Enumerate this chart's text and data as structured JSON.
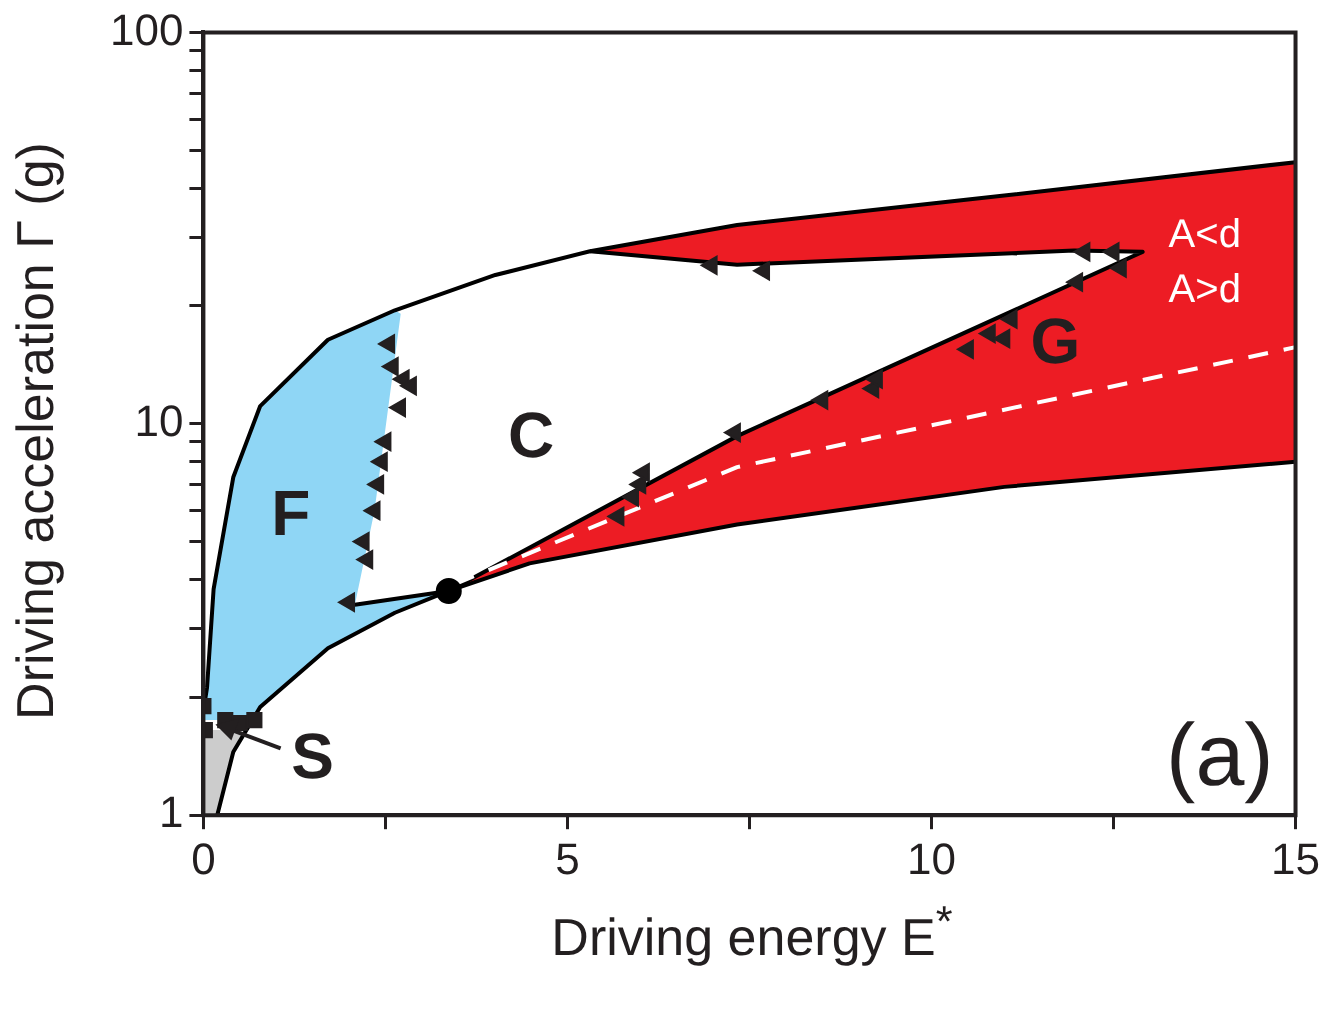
{
  "chart_data": {
    "type": "scatter",
    "xlabel": "Driving energy E$^{*}$",
    "ylabel": "Driving acceleration Γ (g)",
    "log": "y",
    "xlim": [
      0,
      15
    ],
    "ylim": [
      1,
      100
    ],
    "xticks": [
      0,
      {
        "value": 2.5,
        "label": null
      },
      5,
      {
        "value": 7.5,
        "label": null
      },
      10,
      {
        "value": 12.5,
        "label": null
      },
      15
    ],
    "yticks": [
      1,
      {
        "value": 2,
        "label": null
      },
      {
        "value": 3,
        "label": null
      },
      {
        "value": 4,
        "label": null
      },
      {
        "value": 5,
        "label": null
      },
      {
        "value": 6,
        "label": null
      },
      {
        "value": 7,
        "label": null
      },
      {
        "value": 8,
        "label": null
      },
      {
        "value": 9,
        "label": null
      },
      10,
      {
        "value": 20,
        "label": null
      },
      {
        "value": 30,
        "label": null
      },
      {
        "value": 40,
        "label": null
      },
      {
        "value": 50,
        "label": null
      },
      {
        "value": 60,
        "label": null
      },
      {
        "value": 70,
        "label": null
      },
      {
        "value": 80,
        "label": null
      },
      {
        "value": 90,
        "label": null
      },
      100
    ],
    "grid": false,
    "legend": false,
    "series": [
      {
        "type": "area",
        "color": "#8fd6f5",
        "x": [
          0,
          0.05,
          0.14,
          0.41,
          0.78,
          1.71,
          2.63,
          2.71,
          2.35,
          2.08,
          3.37,
          2.63,
          1.71,
          0.78,
          0.6,
          0
        ],
        "values": [
          1.85,
          2.12,
          3.78,
          7.3,
          11.1,
          16.4,
          19.5,
          19.1,
          6.0,
          3.45,
          3.74,
          3.29,
          2.67,
          1.89,
          1.75,
          1.75
        ]
      },
      {
        "type": "area",
        "color": "#ed1c24",
        "x": [
          5.31,
          7.33,
          11.0,
          15,
          15,
          11.0,
          7.33,
          4.48,
          3.37,
          7.33,
          12.9,
          11.96,
          7.33,
          5.31
        ],
        "values": [
          27.6,
          32.2,
          38.3,
          46.6,
          8.0,
          6.9,
          5.53,
          4.4,
          3.74,
          9.3,
          27.5,
          27.7,
          25.5,
          27.6
        ]
      },
      {
        "type": "area",
        "color": "#cccccc",
        "x": [
          0,
          0.19,
          0.41,
          0.55,
          0
        ],
        "values": [
          1,
          1,
          1.45,
          1.65,
          1.65
        ]
      },
      {
        "type": "line",
        "color": "#000000",
        "x": [
          0,
          0.05,
          0.14,
          0.41,
          0.78,
          1.71,
          2.63,
          4.01,
          5.31,
          7.33,
          11.0,
          15
        ],
        "values": [
          1.85,
          2.12,
          3.78,
          7.3,
          11.1,
          16.4,
          19.5,
          24,
          27.6,
          32.2,
          38.3,
          46.6
        ]
      },
      {
        "type": "line",
        "color": "#000000",
        "x": [
          0.19,
          0.41,
          0.78,
          1.71,
          2.63,
          3.37,
          4.48,
          7.33,
          11.0,
          15
        ],
        "values": [
          1,
          1.45,
          1.89,
          2.67,
          3.29,
          3.74,
          4.4,
          5.53,
          6.9,
          8.0
        ]
      },
      {
        "type": "line",
        "color": "#000000",
        "x": [
          2.08,
          3.37,
          7.33,
          12.9,
          11.96,
          7.33,
          5.31
        ],
        "values": [
          3.45,
          3.74,
          9.3,
          27.5,
          27.7,
          25.5,
          27.6
        ]
      },
      {
        "type": "line",
        "color": "#ffffff",
        "line_style": "dashed",
        "x": [
          3.46,
          7.33,
          15
        ],
        "values": [
          3.9,
          7.75,
          15.7
        ]
      },
      {
        "color": "#231f20",
        "marker": "triangle",
        "x": [
          2.55,
          2.6,
          2.75,
          2.85,
          2.7,
          2.5,
          2.45,
          2.4,
          2.35,
          2.2,
          2.25,
          2.0,
          5.7,
          5.9,
          6.0,
          6.05,
          7.3,
          8.5,
          9.2,
          9.25,
          10.5,
          10.8,
          11.0,
          11.1,
          12.0,
          12.6,
          12.5,
          12.1,
          6.98,
          7.7
        ],
        "values": [
          16,
          14,
          13,
          12.5,
          11,
          9,
          8,
          7,
          6,
          5,
          4.5,
          3.5,
          5.8,
          6.5,
          7.0,
          7.5,
          9.5,
          11.5,
          12.3,
          13,
          15.5,
          17,
          16.5,
          18.5,
          23,
          25,
          27.5,
          27.5,
          25.4,
          24.6
        ]
      },
      {
        "type": "scatter",
        "color": "#231f20",
        "marker": "square",
        "x": [
          0,
          0.05,
          0.15,
          0.3,
          0.5,
          0.7,
          0.02
        ],
        "values": [
          1.9,
          null,
          null,
          1.75,
          1.72,
          1.75,
          1.65
        ]
      },
      {
        "type": "scatter",
        "color": "#000000",
        "marker": "circle",
        "x": [
          3.37
        ],
        "values": [
          3.74
        ]
      }
    ],
    "annotations": [
      "F",
      "C",
      "G",
      "S",
      "A<d",
      "A>d",
      "(a)"
    ]
  }
}
